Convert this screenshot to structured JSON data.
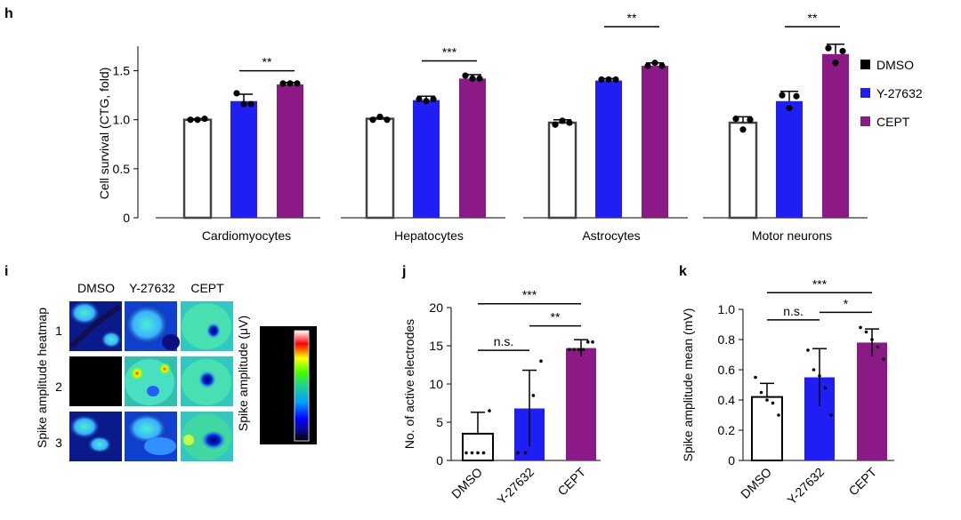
{
  "colors": {
    "dmso": "#ffffff",
    "y27632": "#1f1ff5",
    "cept": "#8b1a86",
    "axis": "#000000",
    "bar_edge_gray": "#444444"
  },
  "legend": {
    "items": [
      {
        "label": "DMSO",
        "color": "#000000"
      },
      {
        "label": "Y-27632",
        "color": "#1f1ff5"
      },
      {
        "label": "CEPT",
        "color": "#8b1a86"
      }
    ]
  },
  "panel_i": {
    "letter": "i",
    "column_labels": [
      "DMSO",
      "Y-27632",
      "CEPT"
    ],
    "row_labels": [
      "1",
      "2",
      "3"
    ],
    "ylabel": "Spike amplitude heatmap",
    "colorbar_label": "Spike amplitude (μV)"
  },
  "chart_data": [
    {
      "panel": "h",
      "type": "bar",
      "ylabel": "Cell survival (CTG, fold)",
      "ylim": [
        0,
        1.75
      ],
      "yticks": [
        "0",
        "0.5",
        "1.0",
        "1.5"
      ],
      "ytick_values": [
        0,
        0.5,
        1.0,
        1.5
      ],
      "series_names": [
        "DMSO",
        "Y-27632",
        "CEPT"
      ],
      "groups": [
        {
          "name": "Cardiomyocytes",
          "values": [
            1.0,
            1.19,
            1.36
          ],
          "errors": [
            0.01,
            0.07,
            0.02
          ],
          "points": [
            [
              1.0,
              1.0,
              1.01
            ],
            [
              1.27,
              1.16,
              1.16
            ],
            [
              1.37,
              1.37,
              1.37
            ]
          ],
          "sig": {
            "from": 1,
            "to": 2,
            "y": 1.5,
            "label": "**"
          }
        },
        {
          "name": "Hepatocytes",
          "values": [
            1.01,
            1.2,
            1.42
          ],
          "errors": [
            0.01,
            0.04,
            0.04
          ],
          "points": [
            [
              1.0,
              1.03,
              1.0
            ],
            [
              1.21,
              1.19,
              1.21
            ],
            [
              1.45,
              1.42,
              1.42
            ]
          ],
          "sig": {
            "from": 1,
            "to": 2,
            "y": 1.6,
            "label": "***"
          }
        },
        {
          "name": "Astrocytes",
          "values": [
            0.97,
            1.4,
            1.55
          ],
          "errors": [
            0.03,
            0.02,
            0.03
          ],
          "points": [
            [
              0.95,
              0.99,
              0.97
            ],
            [
              1.41,
              1.41,
              1.41
            ],
            [
              1.55,
              1.58,
              1.55
            ]
          ],
          "sig": {
            "from": 1,
            "to": 2,
            "y": 1.95,
            "label": "**"
          }
        },
        {
          "name": "Motor neurons",
          "values": [
            0.97,
            1.19,
            1.67
          ],
          "errors": [
            0.06,
            0.1,
            0.1
          ],
          "points": [
            [
              1.01,
              0.9,
              1.0
            ],
            [
              1.25,
              1.12,
              1.24
            ],
            [
              1.73,
              1.58,
              1.7
            ]
          ],
          "sig": {
            "from": 1,
            "to": 2,
            "y": 1.95,
            "label": "**"
          }
        }
      ]
    },
    {
      "panel": "j",
      "type": "bar",
      "ylabel": "No. of active electrodes",
      "ylim": [
        0,
        20
      ],
      "yticks": [
        "0",
        "5",
        "10",
        "15",
        "20"
      ],
      "ytick_values": [
        0,
        5,
        10,
        15,
        20
      ],
      "categories": [
        "DMSO",
        "Y-27632",
        "CEPT"
      ],
      "values": [
        3.5,
        6.8,
        14.7
      ],
      "errors": [
        2.8,
        5.0,
        1.1
      ],
      "points": [
        [
          1,
          1,
          1,
          1,
          6.5
        ],
        [
          1,
          1,
          8.5,
          13
        ],
        [
          14.5,
          14.5,
          14.5,
          14.5,
          15.5,
          15.5
        ]
      ],
      "sig": [
        {
          "from": 0,
          "to": 2,
          "y": 20.5,
          "label": "***"
        },
        {
          "from": 1,
          "to": 2,
          "y": 17.6,
          "label": "**"
        },
        {
          "from": 0,
          "to": 1,
          "y": 14.4,
          "label": "n.s."
        }
      ]
    },
    {
      "panel": "k",
      "type": "bar",
      "ylabel": "Spike amplitude mean (mV)",
      "ylim": [
        0,
        1.0
      ],
      "yticks": [
        "0",
        "0.2",
        "0.4",
        "0.6",
        "0.8",
        "1.0"
      ],
      "ytick_values": [
        0,
        0.2,
        0.4,
        0.6,
        0.8,
        1.0
      ],
      "categories": [
        "DMSO",
        "Y-27632",
        "CEPT"
      ],
      "values": [
        0.42,
        0.55,
        0.78
      ],
      "errors": [
        0.09,
        0.19,
        0.09
      ],
      "points": [
        [
          0.55,
          0.45,
          0.4,
          0.38,
          0.3
        ],
        [
          0.73,
          0.6,
          0.56,
          0.48,
          0.3
        ],
        [
          0.88,
          0.85,
          0.8,
          0.75,
          0.67
        ]
      ],
      "sig": [
        {
          "from": 0,
          "to": 2,
          "y": 1.11,
          "label": "***"
        },
        {
          "from": 1,
          "to": 2,
          "y": 0.98,
          "label": "*"
        },
        {
          "from": 0,
          "to": 1,
          "y": 0.93,
          "label": "n.s."
        }
      ]
    }
  ]
}
